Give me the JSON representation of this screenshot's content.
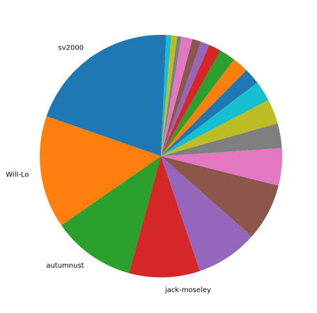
{
  "chart_data": {
    "type": "pie",
    "start_angle_deg": 90,
    "direction": "counterclockwise",
    "slices": [
      {
        "label": "sv2000",
        "value": 20.2,
        "color": "#1f77b4"
      },
      {
        "label": "Will-Lo",
        "value": 15.4,
        "color": "#ff7f0e"
      },
      {
        "label": "autumnust",
        "value": 11.4,
        "color": "#2ca02c"
      },
      {
        "label": "jack-moseley",
        "value": 9.7,
        "color": "#d62728"
      },
      {
        "label": "",
        "value": 8.5,
        "color": "#9467bd"
      },
      {
        "label": "",
        "value": 7.8,
        "color": "#8c564b"
      },
      {
        "label": "",
        "value": 5.1,
        "color": "#e377c2"
      },
      {
        "label": "",
        "value": 3.4,
        "color": "#7f7f7f"
      },
      {
        "label": "",
        "value": 3.4,
        "color": "#bcbd22"
      },
      {
        "label": "",
        "value": 2.8,
        "color": "#17becf"
      },
      {
        "label": "",
        "value": 2.2,
        "color": "#1f77b4"
      },
      {
        "label": "",
        "value": 2.2,
        "color": "#ff7f0e"
      },
      {
        "label": "",
        "value": 2.2,
        "color": "#2ca02c"
      },
      {
        "label": "",
        "value": 1.7,
        "color": "#d62728"
      },
      {
        "label": "",
        "value": 1.2,
        "color": "#9467bd"
      },
      {
        "label": "",
        "value": 1.2,
        "color": "#8c564b"
      },
      {
        "label": "",
        "value": 1.5,
        "color": "#e377c2"
      },
      {
        "label": "",
        "value": 0.6,
        "color": "#7f7f7f"
      },
      {
        "label": "",
        "value": 0.8,
        "color": "#bcbd22"
      },
      {
        "label": "",
        "value": 0.7,
        "color": "#17becf"
      },
      {
        "label": "",
        "value": 0.7,
        "color": "#1f77b4"
      }
    ]
  }
}
